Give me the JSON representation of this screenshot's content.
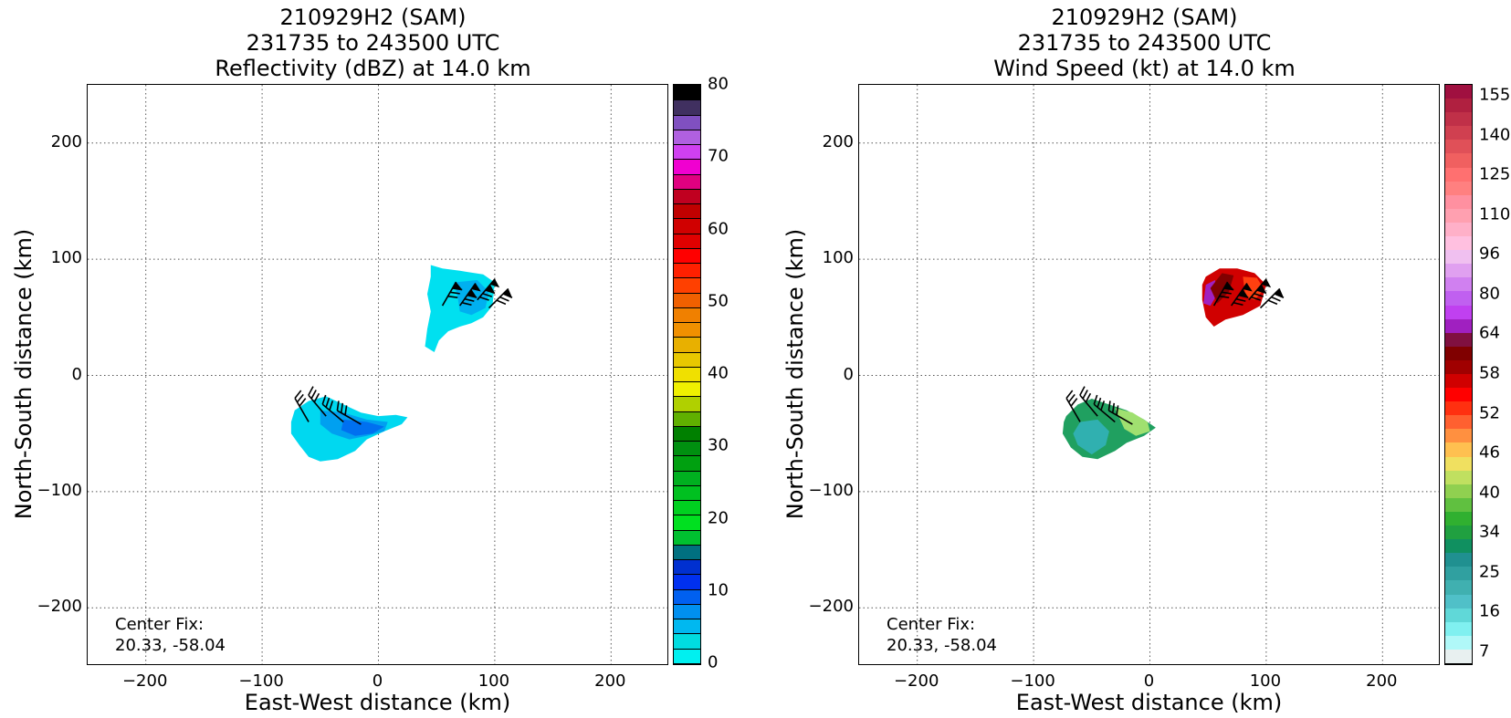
{
  "chart_data": [
    {
      "type": "heatmap",
      "title_lines": [
        "210929H2 (SAM)",
        "231735 to 243500 UTC",
        "Reflectivity (dBZ) at 14.0 km"
      ],
      "xlabel": "East-West distance (km)",
      "ylabel": "North-South distance (km)",
      "xlim": [
        -250,
        250
      ],
      "ylim": [
        -250,
        250
      ],
      "xticks": [
        -200,
        -100,
        0,
        100,
        200
      ],
      "xtick_labels": [
        "−200",
        "−100",
        "0",
        "100",
        "200"
      ],
      "yticks": [
        200,
        100,
        0,
        -100,
        -200
      ],
      "ytick_labels": [
        "200",
        "100",
        "0",
        "−100",
        "−200"
      ],
      "grid": true,
      "annotation_lines": [
        "Center Fix:",
        "20.33, -58.04"
      ],
      "colorbar": {
        "min": 0,
        "max": 80,
        "tick_values": [
          0,
          10,
          20,
          30,
          40,
          50,
          60,
          70,
          80
        ],
        "tick_labels": [
          "0",
          "10",
          "20",
          "30",
          "40",
          "50",
          "60",
          "70",
          "80"
        ],
        "colors": [
          "#00f0f0",
          "#00dce0",
          "#00b8f0",
          "#0090f0",
          "#0060f0",
          "#0030f0",
          "#0030d0",
          "#007080",
          "#00c030",
          "#00e020",
          "#00d020",
          "#00c020",
          "#00b020",
          "#00a010",
          "#009010",
          "#008000",
          "#60b000",
          "#b0d000",
          "#f0f000",
          "#f0e000",
          "#e8c800",
          "#e8b000",
          "#f09000",
          "#f08000",
          "#f06000",
          "#ff4000",
          "#ff2000",
          "#ff0000",
          "#e00000",
          "#d00000",
          "#c00000",
          "#c00020",
          "#e00080",
          "#f000d0",
          "#d040f0",
          "#b060e0",
          "#8050c0",
          "#403060",
          "#000000"
        ]
      },
      "regions": [
        {
          "name": "north-echo",
          "color": "#00e0f0",
          "points": [
            [
              45,
              95
            ],
            [
              55,
              92
            ],
            [
              70,
              90
            ],
            [
              90,
              87
            ],
            [
              100,
              80
            ],
            [
              98,
              60
            ],
            [
              90,
              50
            ],
            [
              80,
              45
            ],
            [
              70,
              42
            ],
            [
              60,
              38
            ],
            [
              52,
              30
            ],
            [
              48,
              20
            ],
            [
              40,
              25
            ],
            [
              42,
              40
            ],
            [
              45,
              55
            ],
            [
              42,
              70
            ],
            [
              45,
              85
            ]
          ]
        },
        {
          "name": "north-echo-core",
          "color": "#00b0f0",
          "points": [
            [
              65,
              80
            ],
            [
              85,
              82
            ],
            [
              95,
              72
            ],
            [
              92,
              58
            ],
            [
              80,
              52
            ],
            [
              70,
              55
            ],
            [
              68,
              68
            ]
          ]
        },
        {
          "name": "south-echo",
          "color": "#00d8f0",
          "points": [
            [
              -72,
              -30
            ],
            [
              -60,
              -22
            ],
            [
              -45,
              -18
            ],
            [
              -30,
              -25
            ],
            [
              -15,
              -32
            ],
            [
              0,
              -35
            ],
            [
              15,
              -34
            ],
            [
              25,
              -36
            ],
            [
              20,
              -42
            ],
            [
              5,
              -48
            ],
            [
              -10,
              -55
            ],
            [
              -20,
              -65
            ],
            [
              -35,
              -72
            ],
            [
              -50,
              -74
            ],
            [
              -60,
              -70
            ],
            [
              -68,
              -60
            ],
            [
              -75,
              -50
            ],
            [
              -75,
              -40
            ]
          ]
        },
        {
          "name": "south-echo-core",
          "color": "#00a0f0",
          "points": [
            [
              -50,
              -30
            ],
            [
              -30,
              -32
            ],
            [
              -10,
              -38
            ],
            [
              8,
              -40
            ],
            [
              5,
              -48
            ],
            [
              -10,
              -52
            ],
            [
              -25,
              -55
            ],
            [
              -40,
              -50
            ],
            [
              -50,
              -42
            ]
          ]
        },
        {
          "name": "south-echo-inner",
          "color": "#0070f0",
          "points": [
            [
              -30,
              -38
            ],
            [
              -10,
              -40
            ],
            [
              5,
              -44
            ],
            [
              -5,
              -50
            ],
            [
              -20,
              -52
            ],
            [
              -32,
              -47
            ]
          ]
        }
      ],
      "wind_barbs": [
        {
          "x": 85,
          "y": 65,
          "dir_deg": 40,
          "flags": 2
        },
        {
          "x": 70,
          "y": 60,
          "dir_deg": 35,
          "flags": 2
        },
        {
          "x": 55,
          "y": 60,
          "dir_deg": 30,
          "flags": 1
        },
        {
          "x": 95,
          "y": 58,
          "dir_deg": 45,
          "flags": 1
        },
        {
          "x": -60,
          "y": -40,
          "dir_deg": 330,
          "flags": 0
        },
        {
          "x": -45,
          "y": -35,
          "dir_deg": 320,
          "flags": 0
        },
        {
          "x": -30,
          "y": -40,
          "dir_deg": 310,
          "flags": 0
        },
        {
          "x": -15,
          "y": -42,
          "dir_deg": 300,
          "flags": 0
        }
      ]
    },
    {
      "type": "heatmap",
      "title_lines": [
        "210929H2 (SAM)",
        "231735 to 243500 UTC",
        "Wind Speed (kt) at 14.0 km"
      ],
      "xlabel": "East-West distance (km)",
      "ylabel": "North-South distance (km)",
      "xlim": [
        -250,
        250
      ],
      "ylim": [
        -250,
        250
      ],
      "xticks": [
        -200,
        -100,
        0,
        100,
        200
      ],
      "xtick_labels": [
        "−200",
        "−100",
        "0",
        "100",
        "200"
      ],
      "yticks": [
        200,
        100,
        0,
        -100,
        -200
      ],
      "ytick_labels": [
        "200",
        "100",
        "0",
        "−100",
        "−200"
      ],
      "grid": true,
      "annotation_lines": [
        "Center Fix:",
        "20.33, -58.04"
      ],
      "colorbar": {
        "tick_labels_top_to_bottom": [
          "155",
          "140",
          "125",
          "110",
          "96",
          "80",
          "64",
          "58",
          "52",
          "46",
          "40",
          "34",
          "25",
          "16",
          "7"
        ],
        "colors_top_to_bottom": [
          "#a01040",
          "#b02040",
          "#c03048",
          "#d04050",
          "#e05058",
          "#f06060",
          "#ff7070",
          "#ff8080",
          "#ff90a0",
          "#ffa0b0",
          "#ffb0c8",
          "#ffc0e0",
          "#f0c0f0",
          "#e0a0f0",
          "#d080f0",
          "#c060f0",
          "#c040f0",
          "#a020c0",
          "#801040",
          "#800000",
          "#a00000",
          "#d00000",
          "#ff0000",
          "#ff3010",
          "#ff6030",
          "#ff9040",
          "#ffc050",
          "#f0e060",
          "#c0e060",
          "#90d050",
          "#60c040",
          "#30b030",
          "#20a040",
          "#109060",
          "#209090",
          "#30a0a0",
          "#40b0b0",
          "#50c0c8",
          "#60d8d8",
          "#80f0f0",
          "#b0f8f8",
          "#e8f0f0"
        ]
      },
      "regions": [
        {
          "name": "north-wind",
          "color": "#d00000",
          "points": [
            [
              48,
              85
            ],
            [
              60,
              92
            ],
            [
              75,
              92
            ],
            [
              90,
              88
            ],
            [
              100,
              78
            ],
            [
              95,
              60
            ],
            [
              80,
              52
            ],
            [
              65,
              48
            ],
            [
              55,
              42
            ],
            [
              48,
              50
            ],
            [
              45,
              65
            ],
            [
              45,
              78
            ]
          ]
        },
        {
          "name": "north-wind-purple",
          "color": "#a020c0",
          "points": [
            [
              48,
              78
            ],
            [
              56,
              82
            ],
            [
              58,
              70
            ],
            [
              52,
              60
            ],
            [
              46,
              62
            ]
          ]
        },
        {
          "name": "north-wind-dark",
          "color": "#800000",
          "points": [
            [
              52,
              75
            ],
            [
              62,
              88
            ],
            [
              72,
              86
            ],
            [
              68,
              72
            ],
            [
              58,
              62
            ]
          ]
        },
        {
          "name": "north-wind-bright",
          "color": "#ff4010",
          "points": [
            [
              80,
              85
            ],
            [
              92,
              84
            ],
            [
              98,
              74
            ],
            [
              90,
              65
            ],
            [
              82,
              68
            ]
          ]
        },
        {
          "name": "south-wind",
          "color": "#20a060",
          "points": [
            [
              -72,
              -35
            ],
            [
              -62,
              -25
            ],
            [
              -50,
              -20
            ],
            [
              -35,
              -25
            ],
            [
              -20,
              -30
            ],
            [
              -5,
              -38
            ],
            [
              5,
              -45
            ],
            [
              -5,
              -52
            ],
            [
              -20,
              -58
            ],
            [
              -30,
              -65
            ],
            [
              -45,
              -72
            ],
            [
              -58,
              -70
            ],
            [
              -68,
              -62
            ],
            [
              -75,
              -50
            ],
            [
              -74,
              -40
            ]
          ]
        },
        {
          "name": "south-wind-inner",
          "color": "#30b0b0",
          "points": [
            [
              -60,
              -40
            ],
            [
              -45,
              -38
            ],
            [
              -35,
              -48
            ],
            [
              -38,
              -60
            ],
            [
              -50,
              -68
            ],
            [
              -62,
              -60
            ],
            [
              -66,
              -50
            ]
          ]
        },
        {
          "name": "south-wind-light",
          "color": "#a0e070",
          "points": [
            [
              -30,
              -28
            ],
            [
              -15,
              -32
            ],
            [
              -2,
              -40
            ],
            [
              0,
              -48
            ],
            [
              -12,
              -52
            ],
            [
              -22,
              -46
            ]
          ]
        }
      ],
      "wind_barbs": [
        {
          "x": 85,
          "y": 65,
          "dir_deg": 40,
          "flags": 2
        },
        {
          "x": 70,
          "y": 60,
          "dir_deg": 35,
          "flags": 2
        },
        {
          "x": 55,
          "y": 60,
          "dir_deg": 30,
          "flags": 1
        },
        {
          "x": 95,
          "y": 58,
          "dir_deg": 45,
          "flags": 1
        },
        {
          "x": -60,
          "y": -40,
          "dir_deg": 330,
          "flags": 0
        },
        {
          "x": -45,
          "y": -35,
          "dir_deg": 320,
          "flags": 0
        },
        {
          "x": -30,
          "y": -40,
          "dir_deg": 310,
          "flags": 0
        },
        {
          "x": -15,
          "y": -42,
          "dir_deg": 300,
          "flags": 0
        }
      ]
    }
  ]
}
